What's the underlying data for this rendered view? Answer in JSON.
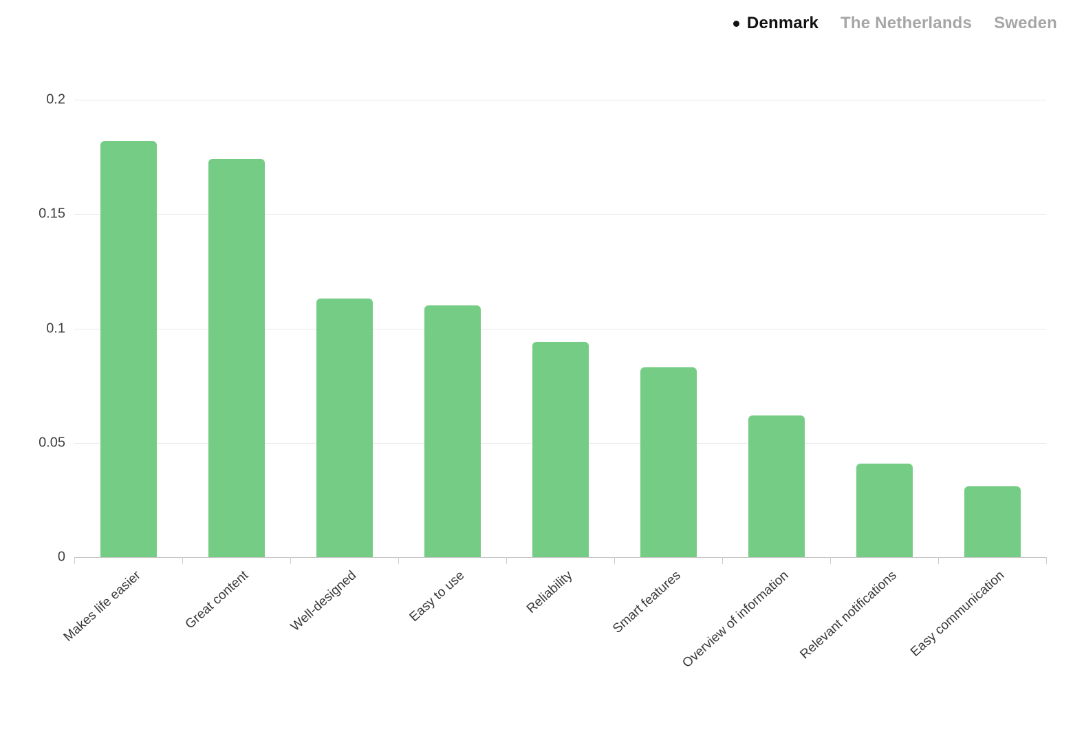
{
  "legend": {
    "items": [
      {
        "label": "Denmark",
        "active": true
      },
      {
        "label": "The Netherlands",
        "active": false
      },
      {
        "label": "Sweden",
        "active": false
      }
    ]
  },
  "chart_data": {
    "type": "bar",
    "title": "",
    "categories": [
      "Makes life easier",
      "Great content",
      "Well-designed",
      "Easy to use",
      "Reliability",
      "Smart features",
      "Overview of information",
      "Relevant notifications",
      "Easy communication"
    ],
    "series": [
      {
        "name": "Denmark",
        "values": [
          0.182,
          0.174,
          0.113,
          0.11,
          0.094,
          0.083,
          0.062,
          0.041,
          0.031
        ]
      }
    ],
    "ylim": [
      0,
      0.2
    ],
    "yticks": [
      0.2,
      0.15,
      0.1,
      0.05,
      0
    ],
    "ytick_labels": [
      "0.2",
      "0.15",
      "0.1",
      "0.05",
      "0"
    ],
    "xlabel": "",
    "ylabel": "",
    "grid": true,
    "legend_position": "top-right",
    "colors": {
      "bar": "#6ec97d",
      "legend_active": "#111111",
      "legend_inactive": "#a6a6a6",
      "gridline": "#e8e8e8",
      "axis_line": "#c6c6c6",
      "tick_label": "#404040",
      "category_label": "#383838"
    }
  }
}
